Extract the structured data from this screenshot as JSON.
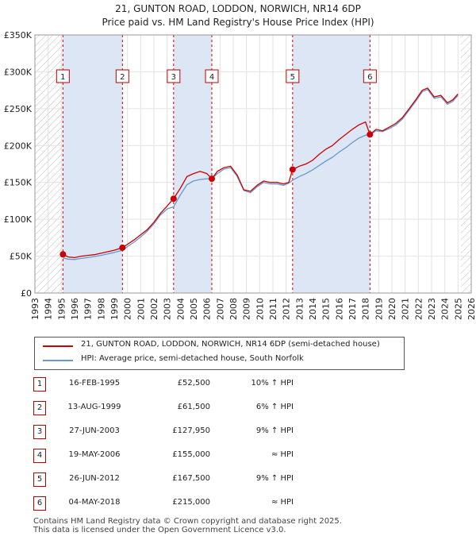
{
  "title_line1": "21, GUNTON ROAD, LODDON, NORWICH, NR14 6DP",
  "title_line2": "Price paid vs. HM Land Registry's House Price Index (HPI)",
  "colors": {
    "property": "#cc0000",
    "hpi": "#6699cc",
    "band": "#dde6f5",
    "vline": "#cc0000"
  },
  "chart_data": {
    "type": "line",
    "xlim": [
      1993,
      2026
    ],
    "ylim": [
      0,
      350000
    ],
    "y_ticks": [
      0,
      50000,
      100000,
      150000,
      200000,
      250000,
      300000,
      350000
    ],
    "y_tick_labels": [
      "£0",
      "£50K",
      "£100K",
      "£150K",
      "£200K",
      "£250K",
      "£300K",
      "£350K"
    ],
    "x_ticks": [
      1993,
      1994,
      1995,
      1996,
      1997,
      1998,
      1999,
      2000,
      2001,
      2002,
      2003,
      2004,
      2005,
      2006,
      2007,
      2008,
      2009,
      2010,
      2011,
      2012,
      2013,
      2014,
      2015,
      2016,
      2017,
      2018,
      2019,
      2020,
      2021,
      2022,
      2023,
      2024,
      2025,
      2026
    ],
    "hatched_before": 1995.1,
    "hatched_after": 2025.2,
    "sales": [
      {
        "n": "1",
        "x": 1995.12,
        "y": 52500
      },
      {
        "n": "2",
        "x": 1999.62,
        "y": 61500
      },
      {
        "n": "3",
        "x": 2003.49,
        "y": 127950
      },
      {
        "n": "4",
        "x": 2006.38,
        "y": 155000
      },
      {
        "n": "5",
        "x": 2012.49,
        "y": 167500
      },
      {
        "n": "6",
        "x": 2018.34,
        "y": 215000
      }
    ],
    "series": [
      {
        "name": "21, GUNTON ROAD, LODDON, NORWICH, NR14 6DP (semi-detached house)",
        "points": [
          [
            1995.12,
            52500
          ],
          [
            1995.5,
            49000
          ],
          [
            1996,
            48000
          ],
          [
            1996.5,
            50000
          ],
          [
            1997,
            51000
          ],
          [
            1997.5,
            52000
          ],
          [
            1998,
            54000
          ],
          [
            1998.5,
            56000
          ],
          [
            1999,
            58000
          ],
          [
            1999.62,
            61500
          ],
          [
            2000,
            66000
          ],
          [
            2000.5,
            72000
          ],
          [
            2001,
            79000
          ],
          [
            2001.5,
            86000
          ],
          [
            2002,
            96000
          ],
          [
            2002.5,
            108000
          ],
          [
            2003,
            118000
          ],
          [
            2003.49,
            127950
          ],
          [
            2004,
            142000
          ],
          [
            2004.5,
            158000
          ],
          [
            2005,
            162000
          ],
          [
            2005.5,
            165000
          ],
          [
            2006,
            162000
          ],
          [
            2006.38,
            155000
          ],
          [
            2006.8,
            165000
          ],
          [
            2007.3,
            170000
          ],
          [
            2007.8,
            172000
          ],
          [
            2008.3,
            160000
          ],
          [
            2008.8,
            140000
          ],
          [
            2009.3,
            138000
          ],
          [
            2009.8,
            146000
          ],
          [
            2010.3,
            152000
          ],
          [
            2010.8,
            150000
          ],
          [
            2011.3,
            150000
          ],
          [
            2011.8,
            148000
          ],
          [
            2012.2,
            150000
          ],
          [
            2012.49,
            167500
          ],
          [
            2013,
            172000
          ],
          [
            2013.5,
            175000
          ],
          [
            2014,
            180000
          ],
          [
            2014.5,
            188000
          ],
          [
            2015,
            195000
          ],
          [
            2015.5,
            200000
          ],
          [
            2016,
            208000
          ],
          [
            2016.5,
            215000
          ],
          [
            2017,
            222000
          ],
          [
            2017.5,
            228000
          ],
          [
            2018,
            232000
          ],
          [
            2018.34,
            215000
          ],
          [
            2018.8,
            222000
          ],
          [
            2019.3,
            220000
          ],
          [
            2019.8,
            225000
          ],
          [
            2020.3,
            230000
          ],
          [
            2020.8,
            238000
          ],
          [
            2021.3,
            250000
          ],
          [
            2021.8,
            262000
          ],
          [
            2022.3,
            275000
          ],
          [
            2022.7,
            278000
          ],
          [
            2023.2,
            266000
          ],
          [
            2023.7,
            268000
          ],
          [
            2024.2,
            258000
          ],
          [
            2024.6,
            262000
          ],
          [
            2025,
            270000
          ]
        ]
      },
      {
        "name": "HPI: Average price, semi-detached house, South Norfolk",
        "points": [
          [
            1995.12,
            47500
          ],
          [
            1995.5,
            46000
          ],
          [
            1996,
            45500
          ],
          [
            1996.5,
            47000
          ],
          [
            1997,
            48000
          ],
          [
            1997.5,
            49500
          ],
          [
            1998,
            51000
          ],
          [
            1998.5,
            53000
          ],
          [
            1999,
            55000
          ],
          [
            1999.62,
            58000
          ],
          [
            2000,
            63000
          ],
          [
            2000.5,
            69000
          ],
          [
            2001,
            76000
          ],
          [
            2001.5,
            84000
          ],
          [
            2002,
            94000
          ],
          [
            2002.5,
            106000
          ],
          [
            2003,
            114000
          ],
          [
            2003.49,
            117000
          ],
          [
            2004,
            133000
          ],
          [
            2004.5,
            147000
          ],
          [
            2005,
            152000
          ],
          [
            2005.5,
            154000
          ],
          [
            2006,
            155000
          ],
          [
            2006.38,
            155000
          ],
          [
            2006.8,
            162000
          ],
          [
            2007.3,
            168000
          ],
          [
            2007.8,
            170000
          ],
          [
            2008.3,
            158000
          ],
          [
            2008.8,
            139000
          ],
          [
            2009.3,
            136000
          ],
          [
            2009.8,
            144000
          ],
          [
            2010.3,
            150000
          ],
          [
            2010.8,
            148000
          ],
          [
            2011.3,
            148000
          ],
          [
            2011.8,
            146000
          ],
          [
            2012.2,
            149000
          ],
          [
            2012.49,
            153000
          ],
          [
            2013,
            158000
          ],
          [
            2013.5,
            162000
          ],
          [
            2014,
            167000
          ],
          [
            2014.5,
            173000
          ],
          [
            2015,
            179000
          ],
          [
            2015.5,
            184000
          ],
          [
            2016,
            191000
          ],
          [
            2016.5,
            197000
          ],
          [
            2017,
            204000
          ],
          [
            2017.5,
            210000
          ],
          [
            2018,
            214000
          ],
          [
            2018.34,
            215000
          ],
          [
            2018.8,
            220000
          ],
          [
            2019.3,
            219000
          ],
          [
            2019.8,
            223000
          ],
          [
            2020.3,
            228000
          ],
          [
            2020.8,
            236000
          ],
          [
            2021.3,
            248000
          ],
          [
            2021.8,
            260000
          ],
          [
            2022.3,
            273000
          ],
          [
            2022.7,
            276000
          ],
          [
            2023.2,
            264000
          ],
          [
            2023.7,
            266000
          ],
          [
            2024.2,
            256000
          ],
          [
            2024.6,
            260000
          ],
          [
            2025,
            268000
          ]
        ]
      }
    ]
  },
  "legend": [
    {
      "label": "21, GUNTON ROAD, LODDON, NORWICH, NR14 6DP (semi-detached house)"
    },
    {
      "label": "HPI: Average price, semi-detached house, South Norfolk"
    }
  ],
  "table": [
    {
      "n": "1",
      "date": "16-FEB-1995",
      "price": "£52,500",
      "hpi": "10% ↑ HPI"
    },
    {
      "n": "2",
      "date": "13-AUG-1999",
      "price": "£61,500",
      "hpi": "6% ↑ HPI"
    },
    {
      "n": "3",
      "date": "27-JUN-2003",
      "price": "£127,950",
      "hpi": "9% ↑ HPI"
    },
    {
      "n": "4",
      "date": "19-MAY-2006",
      "price": "£155,000",
      "hpi": "≈ HPI"
    },
    {
      "n": "5",
      "date": "26-JUN-2012",
      "price": "£167,500",
      "hpi": "9% ↑ HPI"
    },
    {
      "n": "6",
      "date": "04-MAY-2018",
      "price": "£215,000",
      "hpi": "≈ HPI"
    }
  ],
  "footer_line1": "Contains HM Land Registry data © Crown copyright and database right 2025.",
  "footer_line2": "This data is licensed under the Open Government Licence v3.0."
}
